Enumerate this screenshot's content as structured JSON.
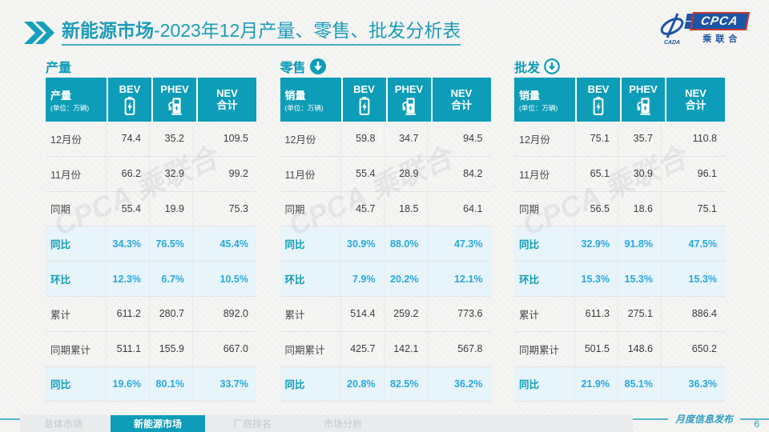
{
  "title": {
    "highlight": "新能源市场",
    "rest": "-2023年12月产量、零售、批发分析表"
  },
  "logo": {
    "box": "CPCA",
    "org": "乘联合",
    "emblem": "CADA"
  },
  "watermark": "CPCA 乘联合",
  "colors": {
    "teal": "#0d9db8",
    "accent_blue": "#29a7dd",
    "title_teal": "#1c9cba"
  },
  "tables": [
    {
      "section": "产量",
      "arrow": "none",
      "corner": "产量",
      "unit": "(单位：万辆)",
      "columns": [
        {
          "name": "bev",
          "label": "BEV",
          "icon": "battery-icon"
        },
        {
          "name": "phev",
          "label": "PHEV",
          "icon": "charger-icon"
        },
        {
          "name": "nev-total",
          "label": "NEV\n合计",
          "icon": ""
        }
      ],
      "rows": [
        {
          "label": "12月份",
          "values": [
            "74.4",
            "35.2",
            "109.5"
          ],
          "highlight": false
        },
        {
          "label": "11月份",
          "values": [
            "66.2",
            "32.9",
            "99.2"
          ],
          "highlight": false
        },
        {
          "label": "同期",
          "values": [
            "55.4",
            "19.9",
            "75.3"
          ],
          "highlight": false
        },
        {
          "label": "同比",
          "values": [
            "34.3%",
            "76.5%",
            "45.4%"
          ],
          "highlight": true
        },
        {
          "label": "环比",
          "values": [
            "12.3%",
            "6.7%",
            "10.5%"
          ],
          "highlight": true
        },
        {
          "label": "累计",
          "values": [
            "611.2",
            "280.7",
            "892.0"
          ],
          "highlight": false
        },
        {
          "label": "同期累计",
          "values": [
            "511.1",
            "155.9",
            "667.0"
          ],
          "highlight": false
        },
        {
          "label": "同比",
          "values": [
            "19.6%",
            "80.1%",
            "33.7%"
          ],
          "highlight": true
        }
      ]
    },
    {
      "section": "零售",
      "arrow": "filled",
      "corner": "销量",
      "unit": "(单位：万辆)",
      "columns": [
        {
          "name": "bev",
          "label": "BEV",
          "icon": "battery-icon"
        },
        {
          "name": "phev",
          "label": "PHEV",
          "icon": "charger-icon"
        },
        {
          "name": "nev-total",
          "label": "NEV\n合计",
          "icon": ""
        }
      ],
      "rows": [
        {
          "label": "12月份",
          "values": [
            "59.8",
            "34.7",
            "94.5"
          ],
          "highlight": false
        },
        {
          "label": "11月份",
          "values": [
            "55.4",
            "28.9",
            "84.2"
          ],
          "highlight": false
        },
        {
          "label": "同期",
          "values": [
            "45.7",
            "18.5",
            "64.1"
          ],
          "highlight": false
        },
        {
          "label": "同比",
          "values": [
            "30.9%",
            "88.0%",
            "47.3%"
          ],
          "highlight": true
        },
        {
          "label": "环比",
          "values": [
            "7.9%",
            "20.2%",
            "12.1%"
          ],
          "highlight": true
        },
        {
          "label": "累计",
          "values": [
            "514.4",
            "259.2",
            "773.6"
          ],
          "highlight": false
        },
        {
          "label": "同期累计",
          "values": [
            "425.7",
            "142.1",
            "567.8"
          ],
          "highlight": false
        },
        {
          "label": "同比",
          "values": [
            "20.8%",
            "82.5%",
            "36.2%"
          ],
          "highlight": true
        }
      ]
    },
    {
      "section": "批发",
      "arrow": "ring",
      "corner": "销量",
      "unit": "(单位：万辆)",
      "columns": [
        {
          "name": "bev",
          "label": "BEV",
          "icon": "battery-icon"
        },
        {
          "name": "phev",
          "label": "PHEV",
          "icon": "charger-icon"
        },
        {
          "name": "nev-total",
          "label": "NEV\n合计",
          "icon": ""
        }
      ],
      "rows": [
        {
          "label": "12月份",
          "values": [
            "75.1",
            "35.7",
            "110.8"
          ],
          "highlight": false
        },
        {
          "label": "11月份",
          "values": [
            "65.1",
            "30.9",
            "96.1"
          ],
          "highlight": false
        },
        {
          "label": "同期",
          "values": [
            "56.5",
            "18.6",
            "75.1"
          ],
          "highlight": false
        },
        {
          "label": "同比",
          "values": [
            "32.9%",
            "91.8%",
            "47.5%"
          ],
          "highlight": true
        },
        {
          "label": "环比",
          "values": [
            "15.3%",
            "15.3%",
            "15.3%"
          ],
          "highlight": true
        },
        {
          "label": "累计",
          "values": [
            "611.3",
            "275.1",
            "886.4"
          ],
          "highlight": false
        },
        {
          "label": "同期累计",
          "values": [
            "501.5",
            "148.6",
            "650.2"
          ],
          "highlight": false
        },
        {
          "label": "同比",
          "values": [
            "21.9%",
            "85.1%",
            "36.3%"
          ],
          "highlight": true
        }
      ]
    }
  ],
  "footer": {
    "note": "月度信息发布",
    "page": "6",
    "tabs": [
      {
        "label": "总体市场",
        "active": false
      },
      {
        "label": "新能源市场",
        "active": true
      },
      {
        "label": "厂商排名",
        "active": false
      },
      {
        "label": "市场分析",
        "active": false
      }
    ]
  }
}
